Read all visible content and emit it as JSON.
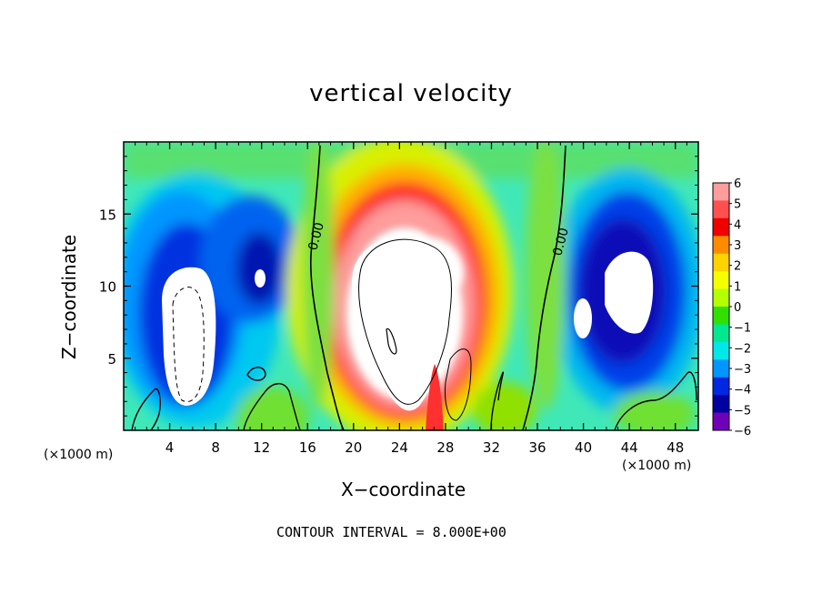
{
  "chart_data": {
    "type": "heatmap",
    "title": "vertical velocity",
    "xlabel": "X−coordinate",
    "ylabel": "Z−coordinate",
    "x_unit_left": "(×1000 m)",
    "x_unit_right": "(×1000 m)",
    "footer": "CONTOUR INTERVAL = 8.000E+00",
    "xlim": [
      0,
      50
    ],
    "ylim": [
      0,
      20
    ],
    "x_ticks": [
      "4",
      "8",
      "12",
      "16",
      "20",
      "24",
      "28",
      "32",
      "36",
      "40",
      "44",
      "48"
    ],
    "y_ticks": [
      "5",
      "10",
      "15"
    ],
    "x_tick_values": [
      4,
      8,
      12,
      16,
      20,
      24,
      28,
      32,
      36,
      40,
      44,
      48
    ],
    "y_tick_values": [
      5,
      10,
      15
    ],
    "contour_labels": [
      "0.00",
      "0.00"
    ],
    "colorbar": {
      "labels": [
        "6",
        "5",
        "4",
        "3",
        "2",
        "1",
        "0",
        "−1",
        "−2",
        "−3",
        "−4",
        "−5",
        "−6"
      ],
      "values": [
        6,
        5,
        4,
        3,
        2,
        1,
        0,
        -1,
        -2,
        -3,
        -4,
        -5,
        -6
      ],
      "colors": [
        "#ff9c9c",
        "#ff5050",
        "#f00000",
        "#ff8c00",
        "#ffd200",
        "#f5ff00",
        "#b4ff00",
        "#32e000",
        "#00e890",
        "#00e8e8",
        "#0096ff",
        "#0028e0",
        "#0000a0",
        "#7000b8"
      ]
    },
    "features": [
      {
        "name": "updraft core",
        "x": 25,
        "z": 9,
        "sign": "positive",
        "max_above": 6
      },
      {
        "name": "downdraft left",
        "x": 6,
        "z": 7,
        "sign": "negative",
        "min_below": -6
      },
      {
        "name": "downdraft right",
        "x": 44,
        "z": 9,
        "sign": "negative",
        "min_below": -6
      }
    ]
  }
}
